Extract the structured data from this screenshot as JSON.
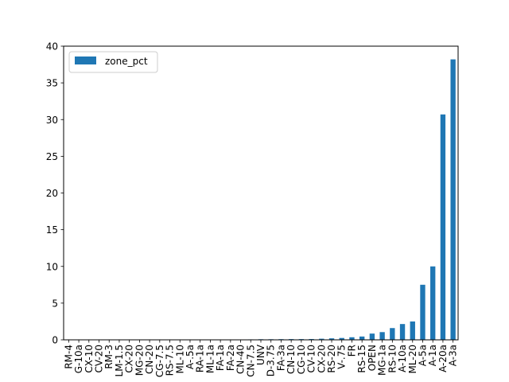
{
  "chart_data": {
    "type": "bar",
    "categories": [
      "RM-4",
      "G-10a",
      "CX-10",
      "CV-20",
      "RM-3",
      "LM-1.5",
      "CX-20",
      "MG-20",
      "CN-20",
      "CG-7.5",
      "RS-7.5",
      "ML-10",
      "A-.5a",
      "RA-1a",
      "ML-1a",
      "FA-1a",
      "FA-2a",
      "CN-40",
      "CN-7.5",
      "UNV",
      "D-3.75",
      "FA-3a",
      "CN-10",
      "CG-10",
      "CV-10",
      "CX-20",
      "RS-20",
      "V-.75",
      "FR",
      "RS-15",
      "OPEN",
      "MG-1a",
      "RS-10",
      "A-10a",
      "ML-20",
      "A-5a",
      "A-1a",
      "A-20a",
      "A-3a"
    ],
    "series": [
      {
        "name": "zone_pct",
        "values": [
          0.02,
          0.02,
          0.02,
          0.02,
          0.03,
          0.03,
          0.03,
          0.03,
          0.03,
          0.03,
          0.03,
          0.03,
          0.04,
          0.04,
          0.04,
          0.04,
          0.05,
          0.05,
          0.06,
          0.08,
          0.08,
          0.09,
          0.1,
          0.1,
          0.11,
          0.15,
          0.2,
          0.25,
          0.35,
          0.45,
          0.85,
          1.05,
          1.6,
          2.15,
          2.5,
          7.5,
          10.0,
          30.7,
          38.2
        ],
        "color": "#1f77b4"
      }
    ],
    "ylim": [
      0,
      40
    ],
    "yticks": [
      0,
      5,
      10,
      15,
      20,
      25,
      30,
      35,
      40
    ],
    "grid": false,
    "legend_position": "top-left"
  }
}
